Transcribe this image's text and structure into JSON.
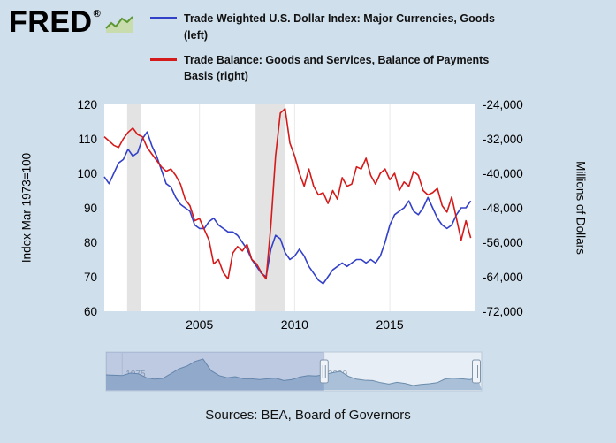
{
  "logo": {
    "text": "FRED",
    "reg": "®"
  },
  "legend": [
    {
      "label": "Trade Weighted U.S. Dollar Index: Major Currencies, Goods (left)",
      "color": "#3340c8"
    },
    {
      "label": "Trade Balance: Goods and Services, Balance of Payments Basis (right)",
      "color": "#d41a1a"
    }
  ],
  "chart_data": {
    "type": "line",
    "title": "",
    "legend_position": "top",
    "grid": {
      "vertical": true,
      "horizontal": false
    },
    "x_axis": {
      "range": [
        2000,
        2019.5
      ],
      "ticks": [
        2005,
        2010,
        2015
      ]
    },
    "left_axis": {
      "title": "Index Mar 1973=100",
      "range": [
        60,
        120
      ],
      "ticks": [
        120,
        110,
        100,
        90,
        80,
        70,
        60
      ]
    },
    "right_axis": {
      "title": "Millions of Dollars",
      "range": [
        -72000,
        -24000
      ],
      "ticks": [
        -24000,
        -32000,
        -40000,
        -48000,
        -56000,
        -64000,
        -72000
      ],
      "tick_labels": [
        "-24,000",
        "-32,000",
        "-40,000",
        "-48,000",
        "-56,000",
        "-64,000",
        "-72,000"
      ]
    },
    "recessions": [
      [
        2001.2,
        2001.92
      ],
      [
        2007.95,
        2009.5
      ]
    ],
    "x": [
      2000,
      2000.25,
      2000.5,
      2000.75,
      2001,
      2001.25,
      2001.5,
      2001.75,
      2002,
      2002.25,
      2002.5,
      2002.75,
      2003,
      2003.25,
      2003.5,
      2003.75,
      2004,
      2004.25,
      2004.5,
      2004.75,
      2005,
      2005.25,
      2005.5,
      2005.75,
      2006,
      2006.25,
      2006.5,
      2006.75,
      2007,
      2007.25,
      2007.5,
      2007.75,
      2008,
      2008.25,
      2008.5,
      2008.75,
      2009,
      2009.25,
      2009.5,
      2009.75,
      2010,
      2010.25,
      2010.5,
      2010.75,
      2011,
      2011.25,
      2011.5,
      2011.75,
      2012,
      2012.25,
      2012.5,
      2012.75,
      2013,
      2013.25,
      2013.5,
      2013.75,
      2014,
      2014.25,
      2014.5,
      2014.75,
      2015,
      2015.25,
      2015.5,
      2015.75,
      2016,
      2016.25,
      2016.5,
      2016.75,
      2017,
      2017.25,
      2017.5,
      2017.75,
      2018,
      2018.25,
      2018.5,
      2018.75,
      2019,
      2019.25
    ],
    "series": [
      {
        "name": "Trade Weighted U.S. Dollar Index: Major Currencies, Goods",
        "axis": "left",
        "color": "#3340c8",
        "values": [
          99,
          97,
          100,
          103,
          104,
          107,
          105,
          106,
          110,
          112,
          108,
          105,
          101,
          97,
          96,
          93,
          91,
          90,
          89,
          85,
          84,
          84,
          86,
          87,
          85,
          84,
          83,
          83,
          82,
          80,
          78,
          75,
          73,
          71,
          70,
          78,
          82,
          81,
          77,
          75,
          76,
          78,
          76,
          73,
          71,
          69,
          68,
          70,
          72,
          73,
          74,
          73,
          74,
          75,
          75,
          74,
          75,
          74,
          76,
          80,
          85,
          88,
          89,
          90,
          92,
          89,
          88,
          90,
          93,
          90,
          87,
          85,
          84,
          85,
          88,
          90,
          90,
          92
        ]
      },
      {
        "name": "Trade Balance: Goods and Services, Balance of Payments Basis",
        "axis": "right",
        "color": "#d41a1a",
        "values": [
          -31500,
          -32500,
          -33500,
          -34000,
          -32000,
          -30500,
          -29500,
          -31000,
          -31500,
          -34000,
          -35500,
          -37000,
          -38500,
          -39500,
          -39000,
          -40500,
          -42500,
          -46000,
          -47500,
          -51000,
          -50500,
          -53000,
          -55500,
          -61000,
          -60000,
          -63000,
          -64500,
          -58500,
          -57000,
          -58000,
          -56500,
          -60000,
          -61000,
          -63000,
          -64500,
          -52000,
          -36000,
          -26000,
          -25000,
          -33000,
          -36000,
          -40000,
          -43000,
          -39000,
          -43000,
          -45000,
          -44500,
          -47000,
          -44000,
          -46000,
          -41000,
          -43000,
          -42500,
          -38500,
          -39000,
          -36500,
          -40500,
          -42500,
          -40000,
          -39000,
          -41500,
          -40000,
          -44000,
          -42000,
          -43000,
          -39500,
          -40500,
          -44000,
          -45000,
          -44500,
          -43500,
          -47500,
          -49000,
          -45500,
          -50500,
          -55500,
          -51000,
          -55000
        ]
      }
    ]
  },
  "slider": {
    "x_range": [
      1973,
      2019.5
    ],
    "selected_range": [
      2000,
      2019.5
    ],
    "labels": [
      {
        "year": 1975,
        "text": "1975"
      },
      {
        "year": 2000,
        "text": "2000"
      }
    ],
    "series": {
      "range": [
        60,
        150
      ],
      "x": [
        1973,
        1974,
        1975,
        1976,
        1977,
        1978,
        1979,
        1980,
        1981,
        1982,
        1983,
        1984,
        1985,
        1986,
        1987,
        1988,
        1989,
        1990,
        1991,
        1992,
        1993,
        1994,
        1995,
        1996,
        1997,
        1998,
        1999,
        2000,
        2001,
        2002,
        2003,
        2004,
        2005,
        2006,
        2007,
        2008,
        2009,
        2010,
        2011,
        2012,
        2013,
        2014,
        2015,
        2016,
        2017,
        2018,
        2019
      ],
      "values": [
        100,
        99,
        98,
        105,
        103,
        92,
        88,
        90,
        103,
        117,
        125,
        138,
        145,
        112,
        98,
        92,
        95,
        89,
        89,
        87,
        89,
        91,
        84,
        87,
        94,
        98,
        97,
        101,
        106,
        110,
        96,
        88,
        85,
        84,
        78,
        74,
        79,
        76,
        70,
        73,
        75,
        78,
        89,
        91,
        89,
        87,
        91
      ]
    }
  },
  "footer": {
    "sources": "Sources: BEA, Board of Governors"
  }
}
